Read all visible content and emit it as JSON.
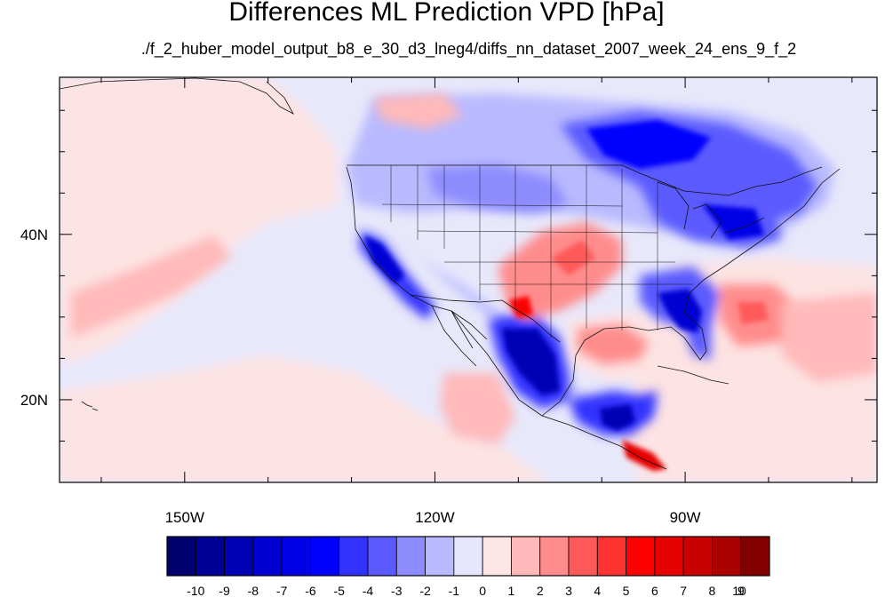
{
  "title": "Differences ML Prediction VPD [hPa]",
  "subtitle": "./f_2_huber_model_output_b8_e_30_d3_lneg4/diffs_nn_dataset_2007_week_24_ens_9_f_2",
  "map": {
    "lon_range": [
      -165,
      -67
    ],
    "lat_range": [
      10,
      59
    ],
    "lon_ticks": [
      {
        "value": -150,
        "label": "150W"
      },
      {
        "value": -120,
        "label": "120W"
      },
      {
        "value": -90,
        "label": "90W"
      }
    ],
    "lat_ticks": [
      {
        "value": 40,
        "label": "40N"
      },
      {
        "value": 20,
        "label": "20N"
      }
    ]
  },
  "colorbar": {
    "labels": [
      "-10",
      "-9",
      "-8",
      "-7",
      "-6",
      "-5",
      "-4",
      "-3",
      "-2",
      "-1",
      "0",
      "1",
      "2",
      "3",
      "4",
      "5",
      "6",
      "7",
      "8",
      "9",
      "10"
    ],
    "colors": [
      "#00006e",
      "#000096",
      "#0000b4",
      "#0000d2",
      "#0000e6",
      "#0000ff",
      "#3232ff",
      "#5a5aff",
      "#8c8cff",
      "#b9b9ff",
      "#e6e6ff",
      "#ffe6e6",
      "#ffb9b9",
      "#ff8c8c",
      "#ff5a5a",
      "#ff3232",
      "#ff0000",
      "#e60000",
      "#c80000",
      "#aa0000",
      "#820000"
    ]
  }
}
